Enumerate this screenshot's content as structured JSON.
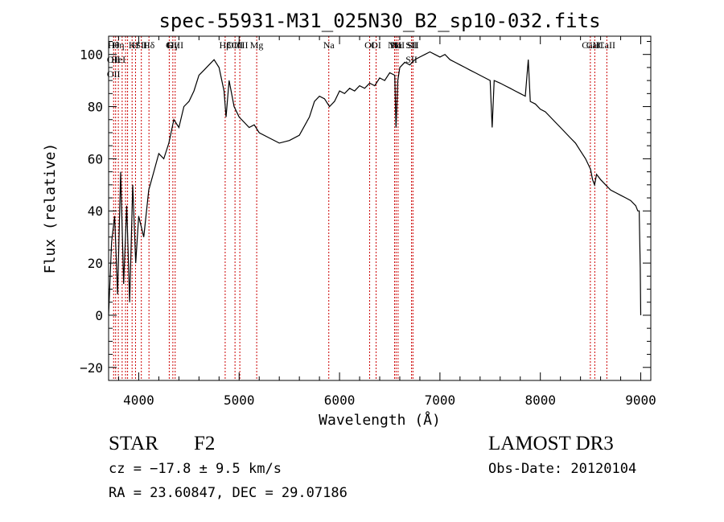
{
  "chart_data": {
    "type": "line",
    "title": "spec-55931-M31_025N30_B2_sp10-032.fits",
    "xlabel": "Wavelength (Å)",
    "ylabel": "Flux (relative)",
    "xlim": [
      3700,
      9100
    ],
    "ylim": [
      -25,
      107
    ],
    "xticks": [
      4000,
      5000,
      6000,
      7000,
      8000,
      9000
    ],
    "yticks": [
      -20,
      0,
      20,
      40,
      60,
      80,
      100
    ],
    "grid": false,
    "line_color": "#000000",
    "marker_color": "#cc0000",
    "spectrum": {
      "x": [
        3700,
        3730,
        3760,
        3790,
        3820,
        3850,
        3880,
        3910,
        3940,
        3970,
        4000,
        4050,
        4100,
        4150,
        4200,
        4250,
        4300,
        4350,
        4400,
        4450,
        4500,
        4550,
        4600,
        4650,
        4700,
        4750,
        4800,
        4850,
        4870,
        4900,
        4950,
        5000,
        5050,
        5100,
        5150,
        5200,
        5300,
        5400,
        5500,
        5600,
        5700,
        5750,
        5800,
        5850,
        5900,
        5950,
        6000,
        6050,
        6100,
        6150,
        6200,
        6250,
        6300,
        6350,
        6400,
        6450,
        6500,
        6550,
        6563,
        6580,
        6600,
        6650,
        6700,
        6750,
        6800,
        6850,
        6900,
        6950,
        7000,
        7050,
        7100,
        7150,
        7200,
        7250,
        7300,
        7350,
        7400,
        7450,
        7500,
        7520,
        7540,
        7600,
        7650,
        7700,
        7750,
        7800,
        7850,
        7880,
        7900,
        7950,
        8000,
        8050,
        8100,
        8150,
        8200,
        8250,
        8300,
        8350,
        8400,
        8450,
        8500,
        8520,
        8540,
        8560,
        8600,
        8650,
        8700,
        8750,
        8800,
        8850,
        8900,
        8950,
        8970,
        8985,
        8995,
        9000
      ],
      "y": [
        0,
        28,
        38,
        8,
        55,
        12,
        42,
        5,
        50,
        20,
        38,
        30,
        48,
        55,
        62,
        60,
        66,
        75,
        72,
        80,
        82,
        86,
        92,
        94,
        96,
        98,
        95,
        86,
        76,
        90,
        80,
        76,
        74,
        72,
        73,
        70,
        68,
        66,
        67,
        69,
        76,
        82,
        84,
        83,
        80,
        82,
        86,
        85,
        87,
        86,
        88,
        87,
        89,
        88,
        91,
        90,
        93,
        92,
        72,
        90,
        95,
        97,
        96,
        98,
        99,
        100,
        101,
        100,
        99,
        100,
        98,
        97,
        96,
        95,
        94,
        93,
        92,
        91,
        90,
        72,
        90,
        89,
        88,
        87,
        86,
        85,
        84,
        98,
        82,
        81,
        79,
        78,
        76,
        74,
        72,
        70,
        68,
        66,
        63,
        60,
        56,
        52,
        50,
        54,
        52,
        50,
        48,
        47,
        46,
        45,
        44,
        42,
        40,
        40,
        18,
        0
      ]
    },
    "lines": [
      {
        "x": 3750,
        "labels": [
          "Hθ",
          "OII",
          "OII"
        ]
      },
      {
        "x": 3770,
        "labels": []
      },
      {
        "x": 3797,
        "labels": [
          "Hη",
          "HeI"
        ]
      },
      {
        "x": 3835,
        "labels": []
      },
      {
        "x": 3869,
        "labels": []
      },
      {
        "x": 3889,
        "labels": []
      },
      {
        "x": 3934,
        "labels": [
          "K"
        ]
      },
      {
        "x": 3968,
        "labels": [
          "H"
        ]
      },
      {
        "x": 4026,
        "labels": [
          "SII"
        ]
      },
      {
        "x": 4102,
        "labels": [
          "Hδ"
        ]
      },
      {
        "x": 4304,
        "labels": [
          "G"
        ]
      },
      {
        "x": 4340,
        "labels": [
          "Hγ"
        ]
      },
      {
        "x": 4363,
        "labels": [
          "OIII"
        ]
      },
      {
        "x": 4861,
        "labels": [
          "Hβ"
        ]
      },
      {
        "x": 4959,
        "labels": [
          "OIII"
        ]
      },
      {
        "x": 5007,
        "labels": [
          "OIII"
        ]
      },
      {
        "x": 5175,
        "labels": [
          "Mg"
        ]
      },
      {
        "x": 5893,
        "labels": [
          "Na"
        ]
      },
      {
        "x": 6300,
        "labels": [
          "OI"
        ]
      },
      {
        "x": 6364,
        "labels": [
          "OI"
        ]
      },
      {
        "x": 6548,
        "labels": [
          "NII"
        ]
      },
      {
        "x": 6563,
        "labels": [
          "Hα"
        ]
      },
      {
        "x": 6583,
        "labels": [
          "NII"
        ]
      },
      {
        "x": 6717,
        "labels": [
          "SII",
          "SII"
        ]
      },
      {
        "x": 6731,
        "labels": [
          "SII"
        ]
      },
      {
        "x": 8498,
        "labels": [
          "CaII"
        ]
      },
      {
        "x": 8542,
        "labels": [
          "CaII"
        ]
      },
      {
        "x": 8662,
        "labels": [
          "CaII"
        ]
      }
    ]
  },
  "info": {
    "object_class": "STAR",
    "subclass": "F2",
    "survey": "LAMOST DR3",
    "cz": "cz = −17.8 ± 9.5 km/s",
    "obs_date": "Obs-Date: 20120104",
    "coords": "RA =  23.60847, DEC =  29.07186"
  }
}
